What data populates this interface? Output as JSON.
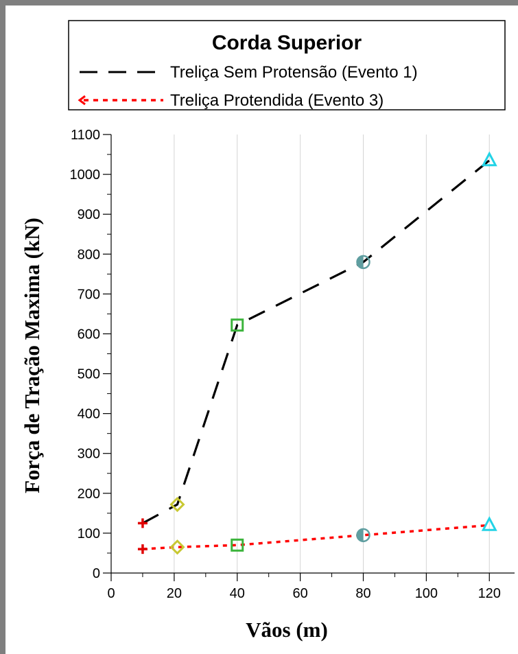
{
  "chart_data": {
    "type": "line",
    "legend": {
      "title": "Corda Superior",
      "placement": "top"
    },
    "xlabel": "Vãos  (m)",
    "ylabel": "Força de Tração Maxima  (kN)",
    "xlim": [
      0,
      128
    ],
    "ylim": [
      0,
      1100
    ],
    "xticks": [
      0,
      20,
      40,
      60,
      80,
      100,
      120
    ],
    "yticks": [
      0,
      100,
      200,
      300,
      400,
      500,
      600,
      700,
      800,
      900,
      1000,
      1100
    ],
    "grid": {
      "x": true,
      "y": false
    },
    "series": [
      {
        "name": "Treliça Sem Protensão (Evento 1)",
        "color": "#000000",
        "dash": "long-dash",
        "x": [
          10,
          21,
          40,
          80,
          120
        ],
        "y": [
          125,
          172,
          622,
          780,
          1035
        ]
      },
      {
        "name": "Treliça Protendida (Evento 3)",
        "color": "#ff0000",
        "dash": "dot",
        "x": [
          10,
          21,
          40,
          80,
          120
        ],
        "y": [
          60,
          65,
          70,
          95,
          120
        ]
      }
    ],
    "point_markers": [
      {
        "x": 10,
        "shape": "plus",
        "color": "#e00000"
      },
      {
        "x": 21,
        "shape": "diamond",
        "color": "#c8c832"
      },
      {
        "x": 40,
        "shape": "square",
        "color": "#3cb43c"
      },
      {
        "x": 80,
        "shape": "half-circle",
        "color": "#5f9ea0"
      },
      {
        "x": 120,
        "shape": "triangle",
        "color": "#22d3e6"
      }
    ]
  }
}
